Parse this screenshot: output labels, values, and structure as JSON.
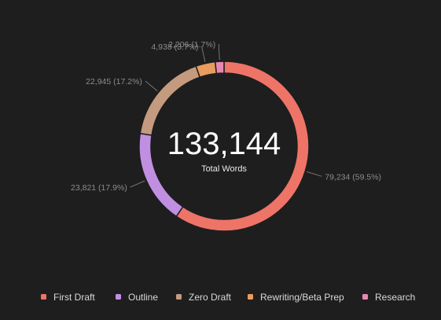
{
  "chart_data": {
    "type": "pie",
    "style": "donut",
    "center_total": "133,144",
    "center_label": "Total Words",
    "categories": [
      "First Draft",
      "Outline",
      "Zero Draft",
      "Rewriting/Beta Prep",
      "Research"
    ],
    "values": [
      79234,
      23821,
      22945,
      4938,
      2206
    ],
    "value_labels": [
      "79,234 (59.5%)",
      "23,821 (17.9%)",
      "22,945 (17.2%)",
      "4,938 (3.7%)",
      "2,206 (1.7%)"
    ],
    "colors": [
      "#ee7468",
      "#c08fe2",
      "#c49b7f",
      "#e99c5e",
      "#e888b2"
    ],
    "legend_position": "bottom"
  }
}
